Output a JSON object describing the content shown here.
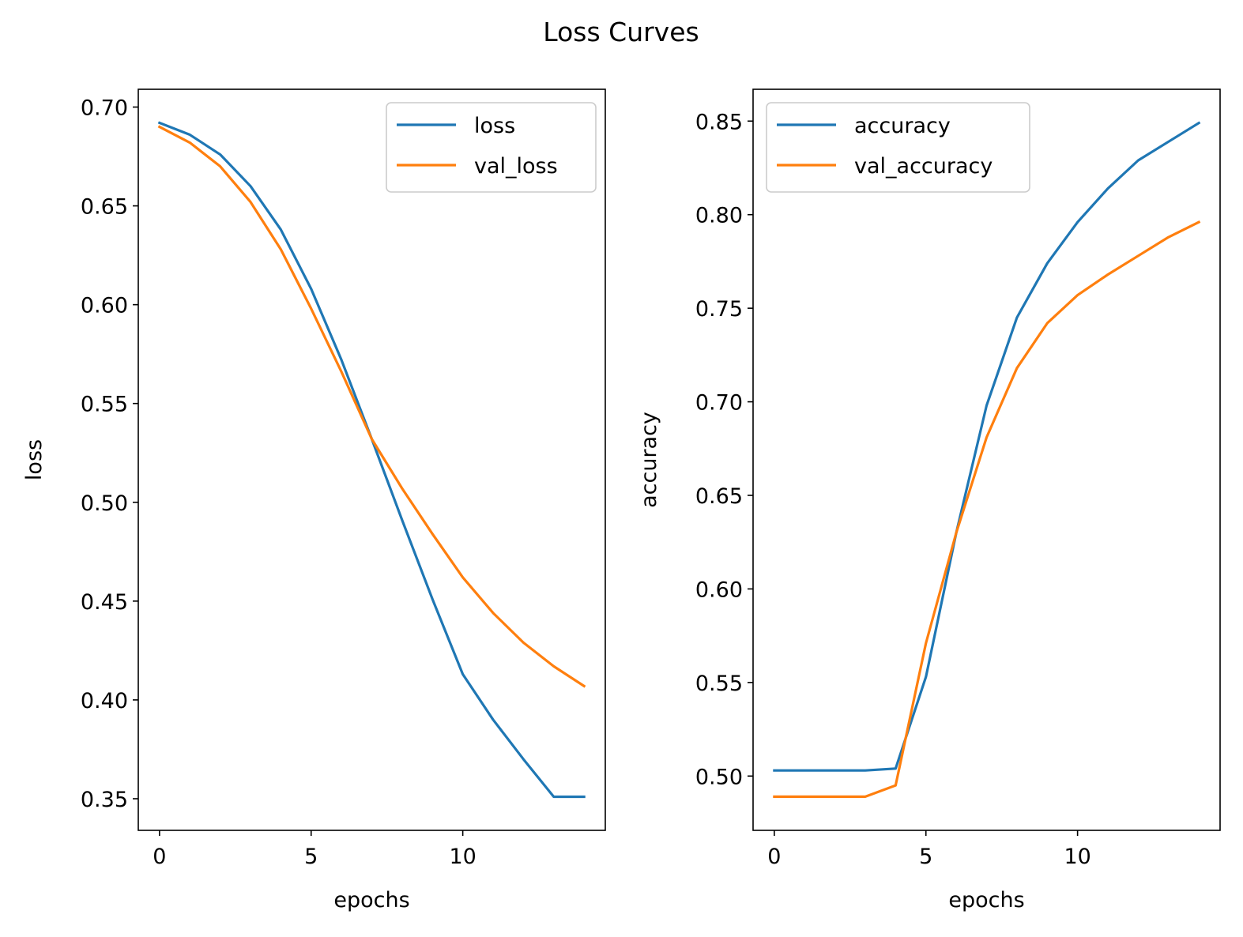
{
  "figure": {
    "title": "Loss Curves"
  },
  "colors": {
    "series1": "#1f77b4",
    "series2": "#ff7f0e",
    "frame": "#000000",
    "legend_border": "#cccccc"
  },
  "chart_data": [
    {
      "type": "line",
      "xlabel": "epochs",
      "ylabel": "loss",
      "xlim": [
        -0.7,
        14.7
      ],
      "ylim": [
        0.334,
        0.709
      ],
      "xticks": [
        0,
        5,
        10
      ],
      "xtick_labels": [
        "0",
        "5",
        "10"
      ],
      "yticks": [
        0.35,
        0.4,
        0.45,
        0.5,
        0.55,
        0.6,
        0.65,
        0.7
      ],
      "ytick_labels": [
        "0.35",
        "0.40",
        "0.45",
        "0.50",
        "0.55",
        "0.60",
        "0.65",
        "0.70"
      ],
      "legend_position": "upper right",
      "grid": false,
      "x": [
        0,
        1,
        2,
        3,
        4,
        5,
        6,
        7,
        8,
        9,
        10,
        11,
        12,
        13,
        14
      ],
      "series": [
        {
          "name": "loss",
          "color": "#1f77b4",
          "values": [
            0.692,
            0.686,
            0.676,
            0.66,
            0.638,
            0.608,
            0.572,
            0.532,
            0.491,
            0.451,
            0.413,
            0.39,
            0.37,
            0.351,
            0.351
          ]
        },
        {
          "name": "val_loss",
          "color": "#ff7f0e",
          "values": [
            0.69,
            0.682,
            0.67,
            0.652,
            0.628,
            0.598,
            0.566,
            0.532,
            0.507,
            0.484,
            0.462,
            0.444,
            0.429,
            0.417,
            0.407
          ]
        }
      ]
    },
    {
      "type": "line",
      "xlabel": "epochs",
      "ylabel": "accuracy",
      "xlim": [
        -0.7,
        14.7
      ],
      "ylim": [
        0.471,
        0.867
      ],
      "xticks": [
        0,
        5,
        10
      ],
      "xtick_labels": [
        "0",
        "5",
        "10"
      ],
      "yticks": [
        0.5,
        0.55,
        0.6,
        0.65,
        0.7,
        0.75,
        0.8,
        0.85
      ],
      "ytick_labels": [
        "0.50",
        "0.55",
        "0.60",
        "0.65",
        "0.70",
        "0.75",
        "0.80",
        "0.85"
      ],
      "legend_position": "upper left",
      "grid": false,
      "x": [
        0,
        1,
        2,
        3,
        4,
        5,
        6,
        7,
        8,
        9,
        10,
        11,
        12,
        13,
        14
      ],
      "series": [
        {
          "name": "accuracy",
          "color": "#1f77b4",
          "values": [
            0.503,
            0.503,
            0.503,
            0.503,
            0.504,
            0.553,
            0.63,
            0.698,
            0.745,
            0.774,
            0.796,
            0.814,
            0.829,
            0.839,
            0.849
          ]
        },
        {
          "name": "val_accuracy",
          "color": "#ff7f0e",
          "values": [
            0.489,
            0.489,
            0.489,
            0.489,
            0.495,
            0.571,
            0.63,
            0.681,
            0.718,
            0.742,
            0.757,
            0.768,
            0.778,
            0.788,
            0.796
          ]
        }
      ]
    }
  ]
}
